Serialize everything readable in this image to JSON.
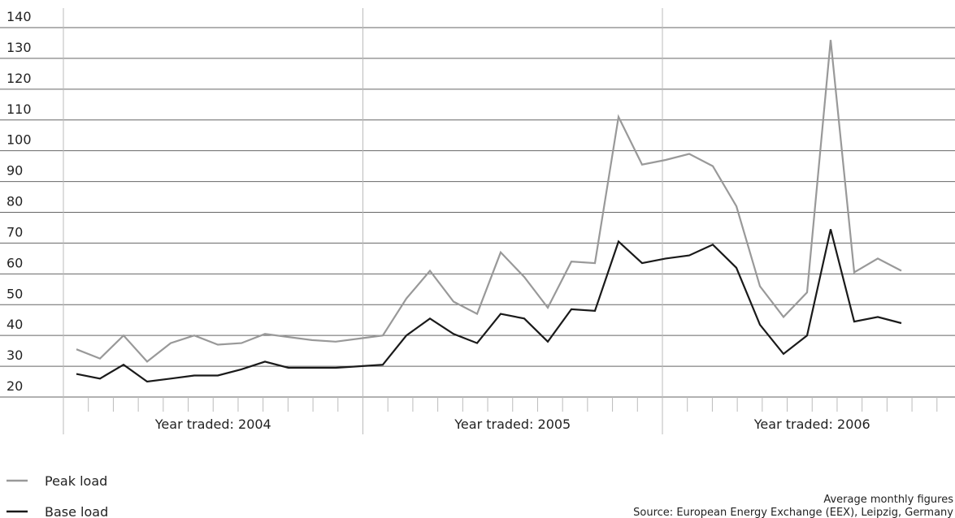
{
  "chart_data": {
    "type": "line",
    "categories": [
      null,
      null,
      null,
      null,
      null,
      null,
      null,
      null,
      null,
      null,
      null,
      null,
      null,
      null,
      null,
      null,
      null,
      null,
      null,
      null,
      null,
      null,
      null,
      null,
      null,
      null,
      null,
      null,
      null,
      null,
      null,
      null,
      null,
      null,
      null,
      null
    ],
    "groups": [
      "Year traded: 2004",
      "Year traded: 2005",
      "Year traded: 2006"
    ],
    "series": [
      {
        "name": "Peak load",
        "color": "#999999",
        "values": [
          35.5,
          32.5,
          40,
          31.5,
          37.5,
          40,
          37,
          37.5,
          40.5,
          39.5,
          38.5,
          38,
          39,
          40,
          52,
          61,
          51,
          47,
          67,
          59,
          49,
          64,
          63.5,
          111,
          95.5,
          97,
          99,
          95,
          82,
          56,
          46,
          54,
          136,
          60.5,
          65,
          61
        ]
      },
      {
        "name": "Base load",
        "color": "#1a1a1a",
        "values": [
          27.5,
          26,
          30.5,
          25,
          26,
          27,
          27,
          29,
          31.5,
          29.5,
          29.5,
          29.5,
          30,
          30.5,
          40,
          45.5,
          40.5,
          37.5,
          47,
          45.5,
          38,
          48.5,
          48,
          70.5,
          63.5,
          65,
          66,
          69.5,
          62,
          43.5,
          34,
          40,
          74.5,
          44.5,
          46,
          44
        ]
      }
    ],
    "ylim": [
      20,
      140
    ],
    "yticks": [
      20,
      30,
      40,
      50,
      60,
      70,
      80,
      90,
      100,
      110,
      120,
      130,
      140
    ],
    "grid": true,
    "notes": [
      "Average monthly figures",
      "Source: European Energy Exchange (EEX), Leipzig, Germany"
    ]
  }
}
